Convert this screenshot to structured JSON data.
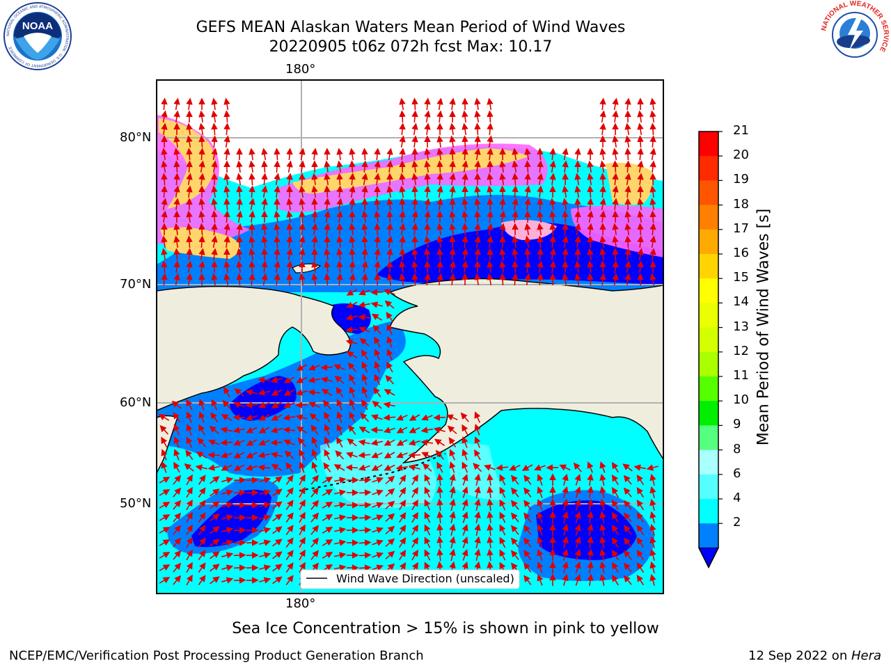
{
  "header": {
    "title_line1": "GEFS MEAN Alaskan Waters Mean Period of Wind Waves",
    "title_line2": "20220905 t06z 072h fcst   Max: 10.17"
  },
  "map": {
    "top_lon_label": "180°",
    "bottom_lon_label": "180°",
    "lat_labels": [
      "80°N",
      "70°N",
      "60°N",
      "50°N"
    ],
    "legend_text": "Wind Wave Direction (unscaled)",
    "colors": {
      "land": "#efedde",
      "open_water": "#00ffff",
      "light_water": "#80ffff",
      "mid_water": "#0080ff",
      "deep_water": "#0000ff",
      "ice_pink": "#ff66ff",
      "ice_yellow": "#ffd66b",
      "arrow": "#e00000"
    }
  },
  "colorbar": {
    "title": "Mean Period of Wind Waves [s]",
    "ticks": [
      "21",
      "20",
      "19",
      "18",
      "17",
      "16",
      "15",
      "14",
      "13",
      "12",
      "11",
      "10",
      "9",
      "8",
      "6",
      "4",
      "2"
    ],
    "bin_colors": [
      "#ff0000",
      "#ff2a00",
      "#ff5500",
      "#ff8000",
      "#ffaa00",
      "#ffd400",
      "#ffff00",
      "#eaff00",
      "#d4ff00",
      "#aaff00",
      "#55ff00",
      "#00ee00",
      "#55ff80",
      "#aaffff",
      "#55ffff",
      "#00ffff",
      "#0080ff"
    ],
    "extend_color": "#0000ff"
  },
  "note": "Sea Ice Concentration > 15% is shown in pink to yellow",
  "footer": {
    "left": "NCEP/EMC/Verification Post Processing Product Generation Branch",
    "date": "12 Sep 2022 on ",
    "host": "Hera"
  },
  "logos": {
    "noaa_text": "NOAA",
    "noaa_ring": "NATIONAL OCEANIC AND ATMOSPHERIC ADMINISTRATION · U.S. DEPARTMENT OF COMMERCE",
    "nws_ring": "NATIONAL WEATHER SERVICE"
  }
}
